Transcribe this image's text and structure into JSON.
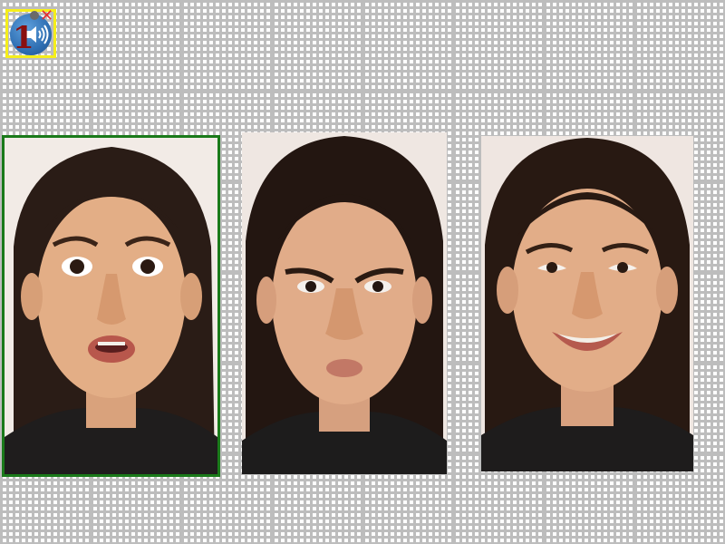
{
  "toolbar": {
    "trial_number": "1",
    "audio_icon": "speaker-icon",
    "close_icon": "close-icon"
  },
  "stimuli": [
    {
      "expression": "surprised",
      "selected": true
    },
    {
      "expression": "angry",
      "selected": false
    },
    {
      "expression": "happy",
      "selected": false
    }
  ],
  "colors": {
    "selection_border": "#1a7a1a",
    "audio_widget_border": "#f5ee1a",
    "audio_widget_fill": "#2f6fb3"
  }
}
